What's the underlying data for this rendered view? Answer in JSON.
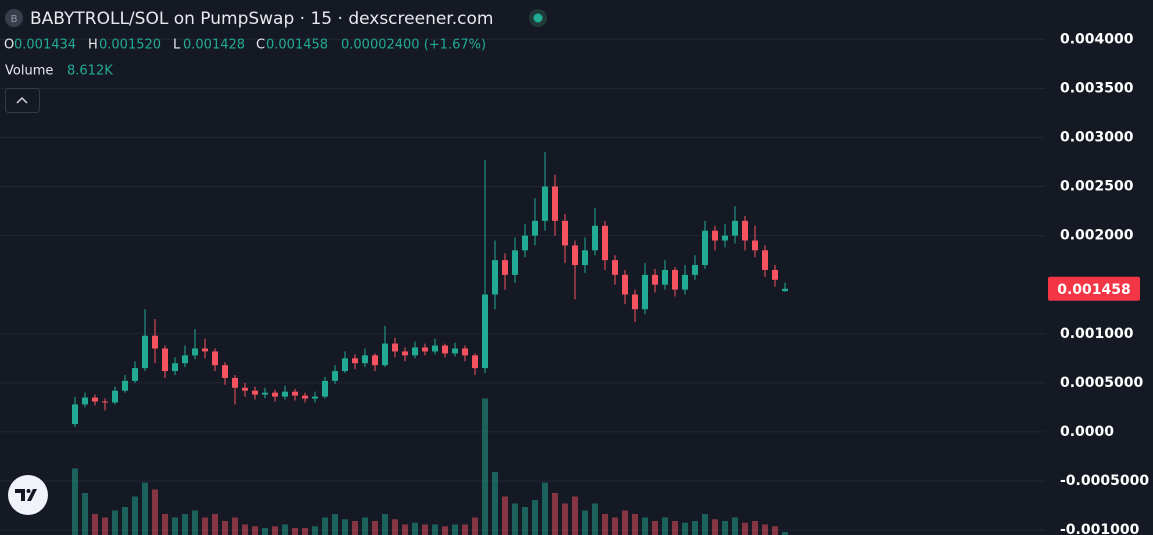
{
  "chart_data": {
    "type": "candlestick",
    "title": "BABYTROLL/SOL on PumpSwap · 15 · dexscreener.com",
    "ohlc_legend": [
      {
        "key": "O",
        "value": "0.001434"
      },
      {
        "key": "H",
        "value": "0.001520"
      },
      {
        "key": "L",
        "value": "0.001428"
      },
      {
        "key": "C",
        "value": "0.001458"
      }
    ],
    "change": "0.00002400 (+1.67%)",
    "volume_label": "Volume",
    "volume_value": "8.612K",
    "up_color": "#22ab94",
    "down_color": "#f7525f",
    "ylim": [
      -0.00105,
      0.0044
    ],
    "yticks": [
      {
        "value": 0.004,
        "label": "0.004000"
      },
      {
        "value": 0.0035,
        "label": "0.003500"
      },
      {
        "value": 0.003,
        "label": "0.003000"
      },
      {
        "value": 0.0025,
        "label": "0.002500"
      },
      {
        "value": 0.002,
        "label": "0.002000"
      },
      {
        "value": 0.001,
        "label": "0.001000"
      },
      {
        "value": 0.0005,
        "label": "0.0005000"
      },
      {
        "value": 0,
        "label": "0.0000"
      },
      {
        "value": -0.0005,
        "label": "-0.0005000"
      },
      {
        "value": -0.001,
        "label": "-0.001000"
      }
    ],
    "grid": true,
    "last_price": {
      "value": 0.001458,
      "label": "0.001458"
    },
    "volume_lim": [
      0,
      400
    ],
    "open": [
      8e-05,
      0.00028,
      0.00035,
      0.00031,
      0.0003,
      0.00042,
      0.00052,
      0.00065,
      0.00098,
      0.00085,
      0.00062,
      0.0007,
      0.00078,
      0.00085,
      0.00082,
      0.00068,
      0.00055,
      0.00045,
      0.00042,
      0.00038,
      0.0004,
      0.00036,
      0.00041,
      0.00037,
      0.00034,
      0.00036,
      0.00052,
      0.00062,
      0.00075,
      0.0007,
      0.00078,
      0.00068,
      0.0009,
      0.00082,
      0.00078,
      0.00086,
      0.00082,
      0.00088,
      0.0008,
      0.00085,
      0.00078,
      0.00065,
      0.0014,
      0.00175,
      0.0016,
      0.00185,
      0.002,
      0.00215,
      0.0025,
      0.00215,
      0.0019,
      0.0017,
      0.00185,
      0.0021,
      0.00175,
      0.0016,
      0.0014,
      0.00125,
      0.0016,
      0.0015,
      0.00165,
      0.00145,
      0.0016,
      0.0017,
      0.00205,
      0.00195,
      0.002,
      0.00215,
      0.00195,
      0.00185,
      0.00165,
      0.001434
    ],
    "high": [
      0.00036,
      0.0004,
      0.00038,
      0.00034,
      0.00046,
      0.00058,
      0.00072,
      0.00125,
      0.00115,
      0.00088,
      0.00076,
      0.00088,
      0.00105,
      0.00095,
      0.00085,
      0.00071,
      0.00058,
      0.0005,
      0.00046,
      0.00045,
      0.00043,
      0.00047,
      0.00044,
      0.0004,
      0.00041,
      0.00056,
      0.00068,
      0.00082,
      0.00079,
      0.00085,
      0.0008,
      0.00108,
      0.00096,
      0.00086,
      0.00092,
      0.0009,
      0.00095,
      0.0009,
      0.00091,
      0.00088,
      0.0008,
      0.00277,
      0.00195,
      0.00182,
      0.00198,
      0.00212,
      0.00238,
      0.00285,
      0.00262,
      0.00222,
      0.00195,
      0.00198,
      0.00228,
      0.00215,
      0.0018,
      0.00165,
      0.00145,
      0.00172,
      0.00166,
      0.00175,
      0.00168,
      0.0017,
      0.0018,
      0.00215,
      0.0021,
      0.00212,
      0.0023,
      0.0022,
      0.0021,
      0.0019,
      0.0017,
      0.00152
    ],
    "low": [
      5e-05,
      0.00025,
      0.00027,
      0.00022,
      0.00028,
      0.0004,
      0.0005,
      0.00062,
      0.0007,
      0.00055,
      0.00058,
      0.00066,
      0.00074,
      0.00075,
      0.00062,
      0.00048,
      0.00028,
      0.00036,
      0.00033,
      0.00034,
      0.00031,
      0.00033,
      0.00032,
      0.0003,
      0.0003,
      0.00034,
      0.00049,
      0.0006,
      0.00064,
      0.00066,
      0.00062,
      0.00066,
      0.00076,
      0.00072,
      0.00075,
      0.00078,
      0.00079,
      0.00076,
      0.00077,
      0.00072,
      0.00058,
      0.0006,
      0.00125,
      0.00145,
      0.00152,
      0.00178,
      0.0019,
      0.00205,
      0.002,
      0.00172,
      0.00135,
      0.00162,
      0.0018,
      0.00165,
      0.0015,
      0.0013,
      0.00112,
      0.0012,
      0.00142,
      0.00145,
      0.00138,
      0.0014,
      0.00155,
      0.00166,
      0.00185,
      0.00188,
      0.00192,
      0.00185,
      0.00178,
      0.00158,
      0.00148,
      0.001428
    ],
    "close": [
      0.00028,
      0.00035,
      0.00031,
      0.0003,
      0.00042,
      0.00052,
      0.00065,
      0.00098,
      0.00085,
      0.00062,
      0.0007,
      0.00078,
      0.00085,
      0.00082,
      0.00068,
      0.00055,
      0.00045,
      0.00042,
      0.00038,
      0.0004,
      0.00036,
      0.00041,
      0.00037,
      0.00034,
      0.00036,
      0.00052,
      0.00062,
      0.00075,
      0.0007,
      0.00078,
      0.00068,
      0.0009,
      0.00082,
      0.00078,
      0.00086,
      0.00082,
      0.00088,
      0.0008,
      0.00085,
      0.00078,
      0.00065,
      0.0014,
      0.00175,
      0.0016,
      0.00185,
      0.002,
      0.00215,
      0.0025,
      0.00215,
      0.0019,
      0.0017,
      0.00185,
      0.0021,
      0.00175,
      0.0016,
      0.0014,
      0.00125,
      0.0016,
      0.0015,
      0.00165,
      0.00145,
      0.0016,
      0.0017,
      0.00205,
      0.00195,
      0.002,
      0.00215,
      0.00195,
      0.00185,
      0.00165,
      0.00155,
      0.001458
    ],
    "volume": [
      190,
      120,
      60,
      50,
      70,
      80,
      110,
      150,
      130,
      60,
      50,
      60,
      70,
      50,
      60,
      40,
      50,
      30,
      25,
      20,
      25,
      30,
      20,
      20,
      25,
      50,
      60,
      45,
      40,
      50,
      40,
      60,
      45,
      30,
      35,
      30,
      30,
      25,
      30,
      30,
      50,
      390,
      180,
      110,
      90,
      80,
      100,
      150,
      120,
      90,
      110,
      70,
      90,
      60,
      50,
      70,
      60,
      50,
      40,
      50,
      40,
      35,
      40,
      60,
      45,
      40,
      50,
      35,
      40,
      30,
      25,
      8.612
    ]
  }
}
